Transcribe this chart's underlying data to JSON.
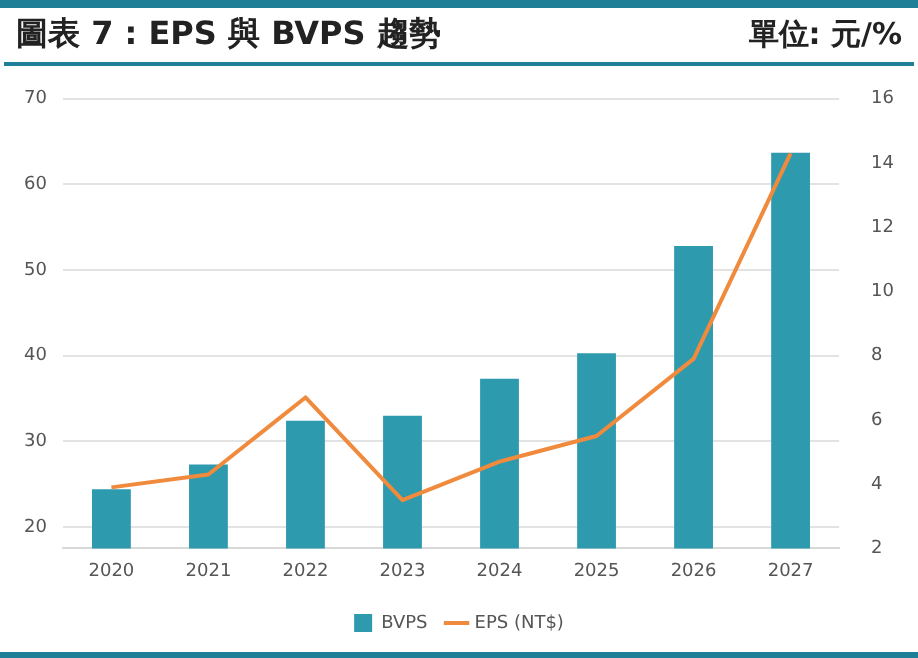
{
  "chart_data": {
    "type": "bar",
    "title": "圖表 7 : EPS 與 BVPS 趨勢",
    "subtitle": "單位: 元/%",
    "categories": [
      "2020",
      "2021",
      "2022",
      "2023",
      "2024",
      "2025",
      "2026",
      "2027"
    ],
    "series": [
      {
        "name": "BVPS",
        "color": "#2e9aad",
        "values": [
          24.4,
          27.3,
          32.4,
          33.0,
          37.3,
          40.3,
          52.8,
          63.7
        ]
      },
      {
        "name": "EPS (NT$)",
        "type": "line",
        "axis": "y2",
        "color": "#f08a3c",
        "values": [
          3.9,
          4.3,
          6.7,
          3.5,
          4.7,
          5.5,
          7.9,
          14.3
        ]
      }
    ],
    "ylim": [
      17.5,
      70
    ],
    "yticks": [
      20,
      30,
      40,
      50,
      60,
      70
    ],
    "y2lim": [
      2,
      16
    ],
    "y2ticks": [
      2,
      4,
      6,
      8,
      10,
      12,
      14,
      16
    ],
    "grid": "y",
    "legend": "bottom",
    "marker": "none"
  }
}
